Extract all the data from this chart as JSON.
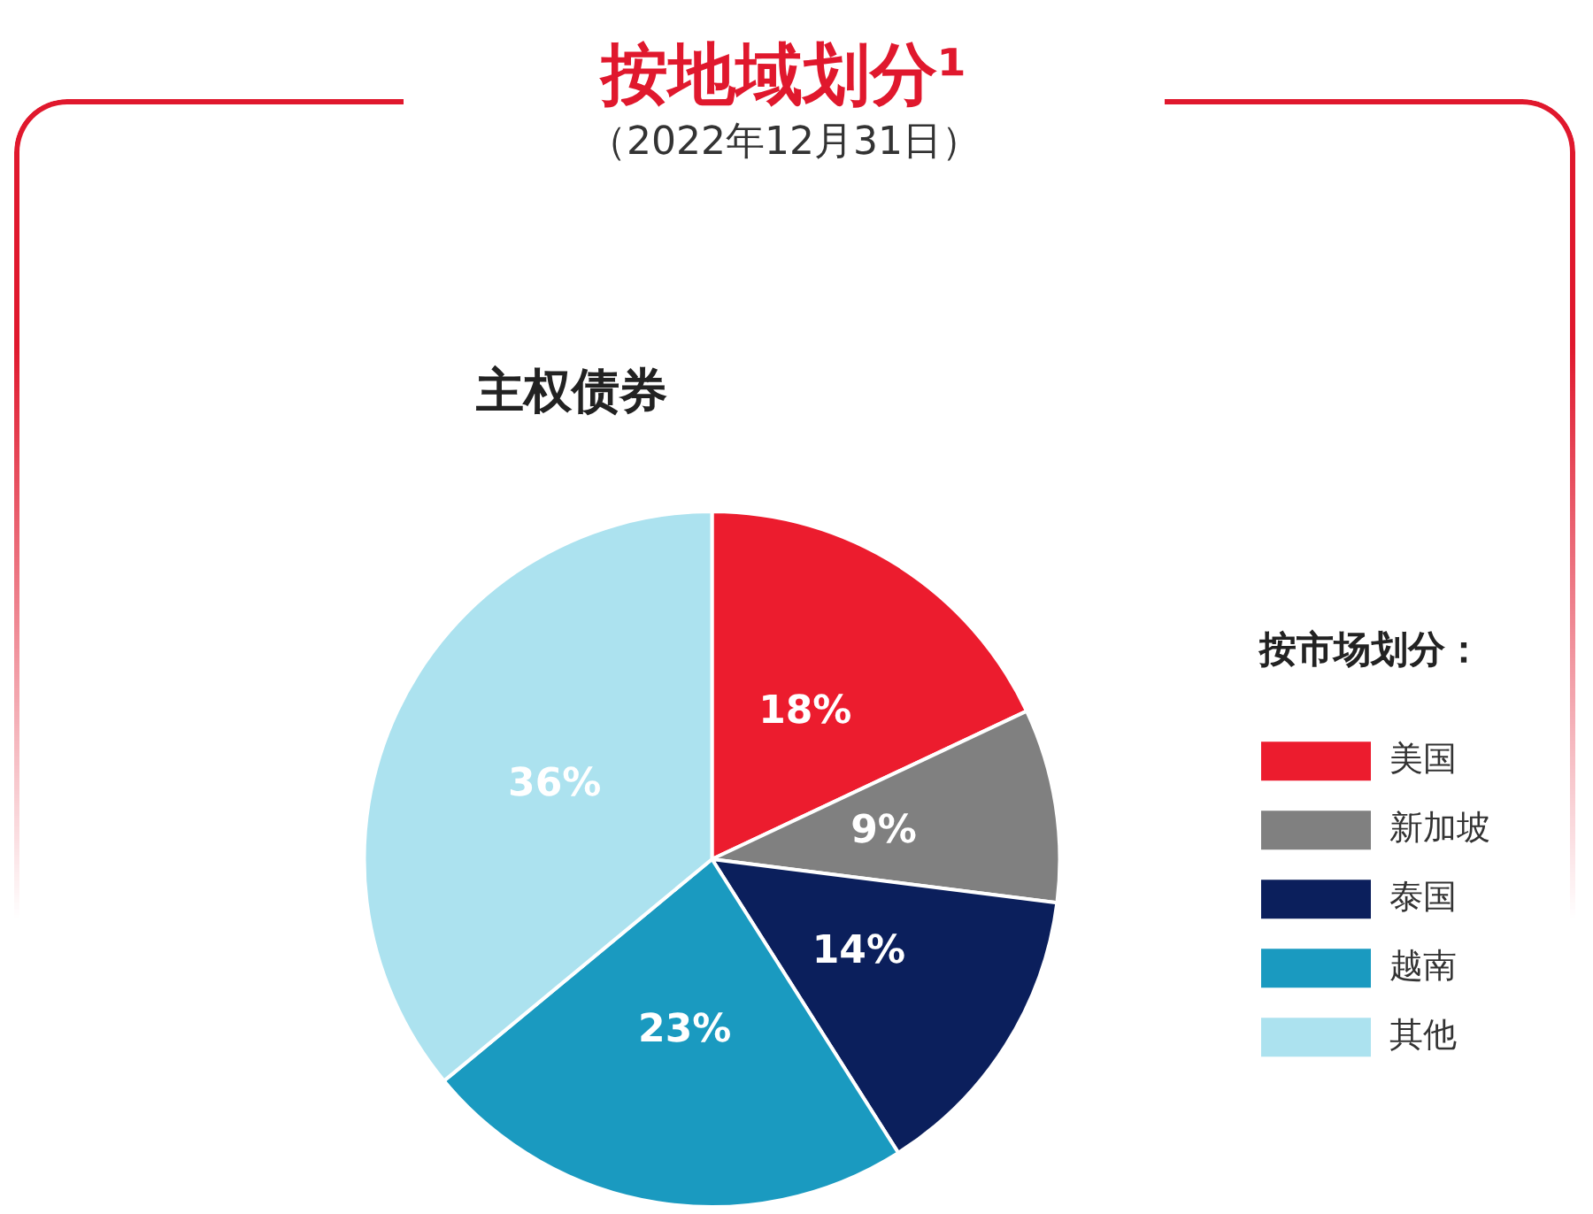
{
  "chart_data": {
    "type": "pie",
    "title": "按地域划分¹",
    "subtitle": "（2022年12月31日）",
    "annotations": [
      "主权债券"
    ],
    "legend_title": "按市场划分：",
    "legend": "right",
    "categories": [
      "美国",
      "新加坡",
      "泰国",
      "越南",
      "其他"
    ],
    "values": [
      18,
      9,
      14,
      23,
      36
    ],
    "colors": [
      "#ec1c2e",
      "#808080",
      "#0b1f5c",
      "#1a9ac0",
      "#ace2ef"
    ],
    "value_labels": [
      "18%",
      "9%",
      "14%",
      "23%",
      "36%"
    ]
  }
}
